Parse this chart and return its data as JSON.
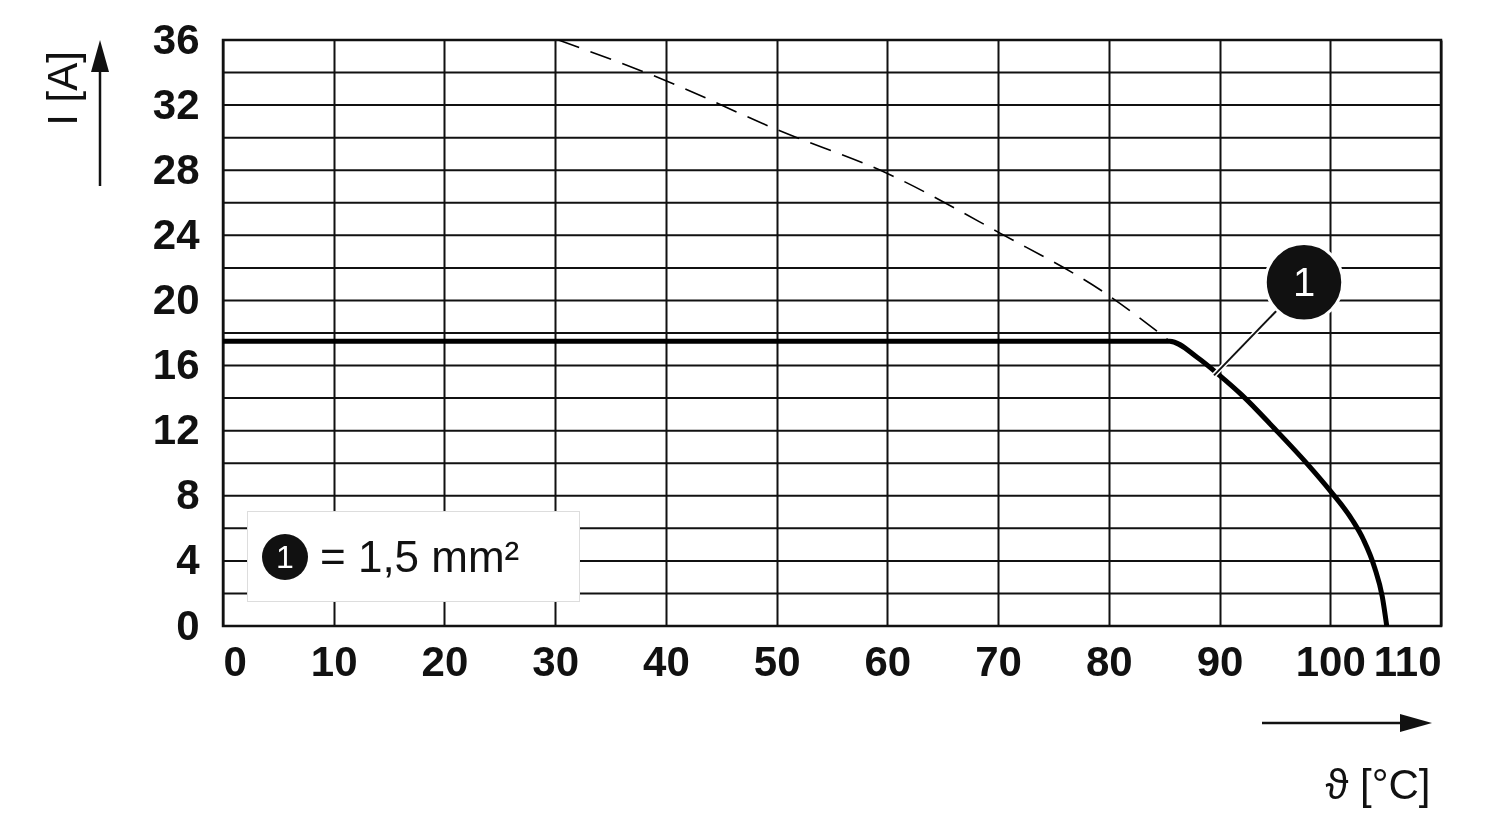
{
  "chart_data": {
    "type": "line",
    "xlabel": "ϑ [°C]",
    "ylabel": "I [A]",
    "xlim": [
      0,
      110
    ],
    "xticks": [
      0,
      10,
      20,
      30,
      40,
      50,
      60,
      70,
      80,
      90,
      100,
      110
    ],
    "ylim": [
      0,
      36
    ],
    "yticks": [
      0,
      {
        "value": 2,
        "label": null
      },
      4,
      {
        "value": 6,
        "label": null
      },
      8,
      {
        "value": 10,
        "label": null
      },
      12,
      {
        "value": 14,
        "label": null
      },
      16,
      {
        "value": 18,
        "label": null
      },
      20,
      {
        "value": 22,
        "label": null
      },
      24,
      {
        "value": 26,
        "label": null
      },
      28,
      {
        "value": 30,
        "label": null
      },
      32,
      {
        "value": 34,
        "label": null
      },
      36
    ],
    "grid": true,
    "marker": "none",
    "series": [
      {
        "color": "#000000",
        "line_style": "solid",
        "x": [
          0,
          85.5,
          88,
          90,
          92,
          95,
          98,
          100,
          102,
          103,
          104,
          104.7,
          105.1
        ],
        "values": [
          17.5,
          17.5,
          16.5,
          15.4,
          14.2,
          12.1,
          9.9,
          8.3,
          6.5,
          5.3,
          3.6,
          1.8,
          0
        ]
      },
      {
        "color": "#000000",
        "line_style": "dashed",
        "x": [
          30.3,
          40,
          50,
          60,
          70,
          80,
          85.5
        ],
        "values": [
          36,
          33.5,
          30.5,
          27.8,
          24.2,
          20.3,
          17.5
        ]
      }
    ],
    "annotations": [
      {
        "text": "1",
        "x": 89.5,
        "y": 15.4
      },
      "1 = 1,5 mm²"
    ]
  }
}
